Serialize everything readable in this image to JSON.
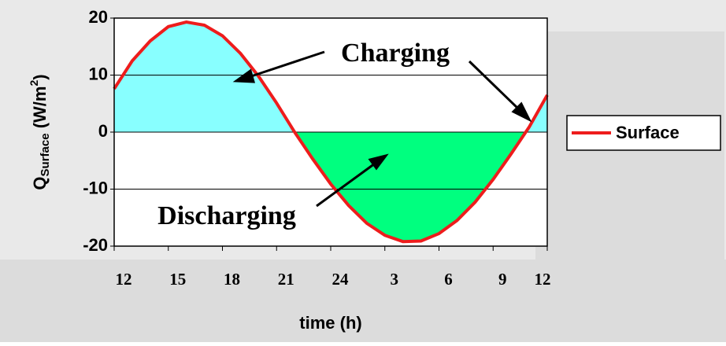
{
  "chart_data": {
    "type": "line",
    "x": [
      0,
      1,
      2,
      3,
      4,
      5,
      6,
      7,
      8,
      9,
      10,
      11,
      12,
      13,
      14,
      15,
      16,
      17,
      18,
      19,
      20,
      21,
      22,
      23,
      24
    ],
    "series": [
      {
        "name": "Surface",
        "color": "#ee1c1c",
        "values": [
          7.6,
          12.5,
          16,
          18.5,
          19.3,
          18.75,
          16.9,
          13.8,
          9.8,
          5.1,
          0,
          -4.7,
          -9.1,
          -12.9,
          -16,
          -18.1,
          -19.2,
          -19.1,
          -17.8,
          -15.5,
          -12.3,
          -8.3,
          -3.8,
          0.9,
          6.5
        ]
      }
    ],
    "positive_fill": "#88ffff",
    "negative_fill": "#00ff7f",
    "xlim": [
      0,
      24
    ],
    "xticks": [
      {
        "value": 0,
        "label": "12"
      },
      {
        "value": 3,
        "label": "15"
      },
      {
        "value": 6,
        "label": "18"
      },
      {
        "value": 9,
        "label": "21"
      },
      {
        "value": 12,
        "label": "24"
      },
      {
        "value": 15,
        "label": "3"
      },
      {
        "value": 18,
        "label": "6"
      },
      {
        "value": 21,
        "label": "9"
      },
      {
        "value": 24,
        "label": "12"
      }
    ],
    "ylim": [
      -20,
      20
    ],
    "yticks": [
      -20,
      -10,
      0,
      10,
      20
    ],
    "grid": true,
    "xlabel": "time (h)",
    "ylabel": [
      "Q",
      "Surface",
      " (W/m",
      "2",
      ")"
    ],
    "annotations": [
      "Charging",
      "Discharging"
    ],
    "legend": "right"
  }
}
